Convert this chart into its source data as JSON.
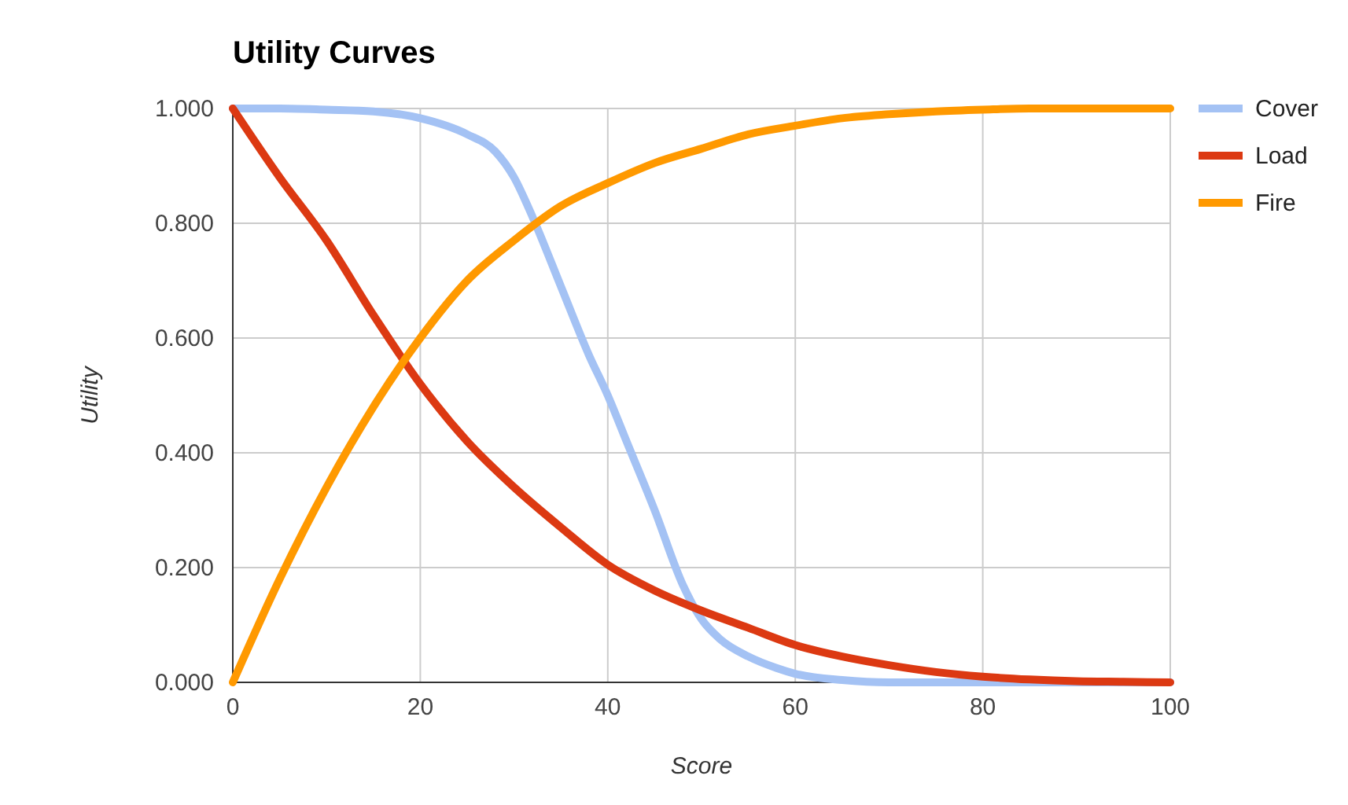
{
  "chart_data": {
    "type": "line",
    "title": "Utility Curves",
    "xlabel": "Score",
    "ylabel": "Utility",
    "xlim": [
      0,
      100
    ],
    "ylim": [
      0,
      1
    ],
    "xticks": [
      0,
      20,
      40,
      60,
      80,
      100
    ],
    "yticks": [
      {
        "value": 0,
        "label": "0.000"
      },
      {
        "value": 0.2,
        "label": "0.200"
      },
      {
        "value": 0.4,
        "label": "0.400"
      },
      {
        "value": 0.6,
        "label": "0.600"
      },
      {
        "value": 0.8,
        "label": "0.800"
      },
      {
        "value": 1,
        "label": "1.000"
      }
    ],
    "grid": true,
    "legend": "right",
    "marker": "none",
    "line_style": "solid",
    "series": [
      {
        "name": "Cover",
        "color": "#a4c2f4",
        "x": [
          0,
          5,
          10,
          15,
          20,
          25,
          28,
          30,
          32,
          35,
          38,
          40,
          42,
          45,
          48,
          50,
          52,
          55,
          58,
          60,
          65,
          70,
          80,
          90,
          100
        ],
        "values": [
          1,
          1,
          0.998,
          0.995,
          0.983,
          0.955,
          0.925,
          0.88,
          0.81,
          0.69,
          0.57,
          0.5,
          0.42,
          0.3,
          0.17,
          0.11,
          0.075,
          0.045,
          0.025,
          0.015,
          0.004,
          0,
          0,
          0,
          0
        ]
      },
      {
        "name": "Load",
        "color": "#dc3912",
        "x": [
          0,
          5,
          10,
          15,
          20,
          25,
          30,
          35,
          40,
          45,
          50,
          55,
          60,
          65,
          70,
          75,
          80,
          85,
          90,
          95,
          100
        ],
        "values": [
          1,
          0.88,
          0.77,
          0.64,
          0.52,
          0.42,
          0.34,
          0.27,
          0.205,
          0.16,
          0.125,
          0.095,
          0.065,
          0.045,
          0.03,
          0.018,
          0.01,
          0.005,
          0.002,
          0.001,
          0
        ]
      },
      {
        "name": "Fire",
        "color": "#ff9900",
        "x": [
          0,
          5,
          10,
          15,
          20,
          25,
          30,
          35,
          40,
          45,
          50,
          55,
          60,
          65,
          70,
          75,
          80,
          85,
          90,
          95,
          100
        ],
        "values": [
          0,
          0.18,
          0.34,
          0.48,
          0.6,
          0.7,
          0.77,
          0.83,
          0.87,
          0.905,
          0.93,
          0.955,
          0.97,
          0.983,
          0.99,
          0.995,
          0.998,
          1,
          1,
          1,
          1
        ]
      }
    ]
  }
}
